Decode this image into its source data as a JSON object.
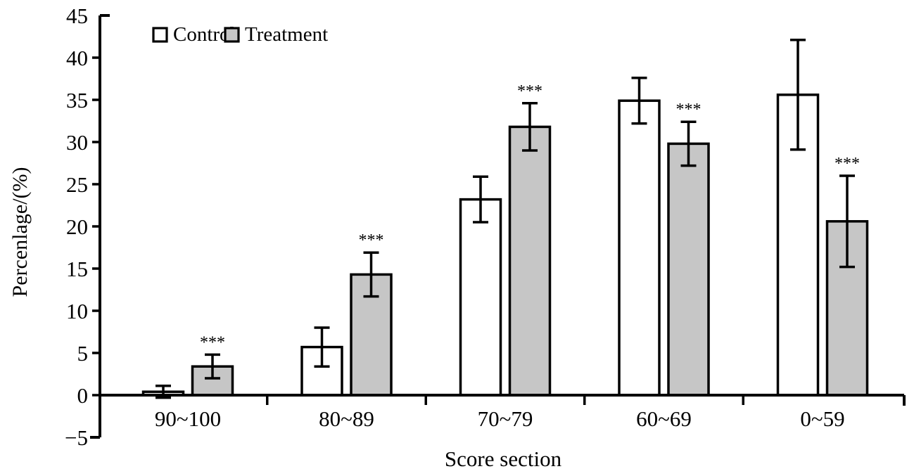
{
  "chart_data": {
    "type": "bar",
    "title": "",
    "xlabel": "Score section",
    "ylabel": "Percenlage/(%)",
    "categories": [
      "90~100",
      "80~89",
      "70~79",
      "60~69",
      "0~59"
    ],
    "series": [
      {
        "name": "Control",
        "fill": "#ffffff",
        "values": [
          0.4,
          5.7,
          23.2,
          34.9,
          35.6
        ],
        "errors": [
          0.7,
          2.3,
          2.7,
          2.7,
          6.5
        ]
      },
      {
        "name": "Treatment",
        "fill": "#c6c6c6",
        "values": [
          3.4,
          14.3,
          31.8,
          29.8,
          20.6
        ],
        "errors": [
          1.4,
          2.6,
          2.8,
          2.6,
          5.4
        ]
      }
    ],
    "significance": {
      "label": "***",
      "series": "Treatment",
      "groups": [
        0,
        1,
        2,
        3,
        4
      ]
    },
    "ylim": [
      -5,
      45
    ],
    "yticks": [
      -5,
      0,
      5,
      10,
      15,
      20,
      25,
      30,
      35,
      40,
      45
    ],
    "grid": false,
    "legend_position": "top-left-inside",
    "bar_border_color": "#000000",
    "axis_color": "#000000"
  }
}
